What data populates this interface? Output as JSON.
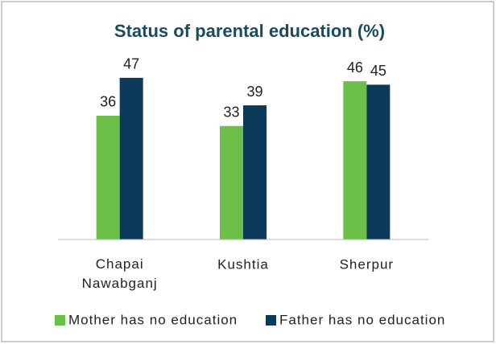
{
  "chart_data": {
    "type": "bar",
    "title": "Status of parental education (%)",
    "categories": [
      "Chapai Nawabganj",
      "Kushtia",
      "Sherpur"
    ],
    "series": [
      {
        "name": "Mother has no education",
        "color": "#6cc04a",
        "values": [
          36,
          33,
          46
        ]
      },
      {
        "name": "Father has no education",
        "color": "#0b3a5a",
        "values": [
          47,
          39,
          45
        ]
      }
    ],
    "ylim": [
      0,
      50
    ]
  }
}
